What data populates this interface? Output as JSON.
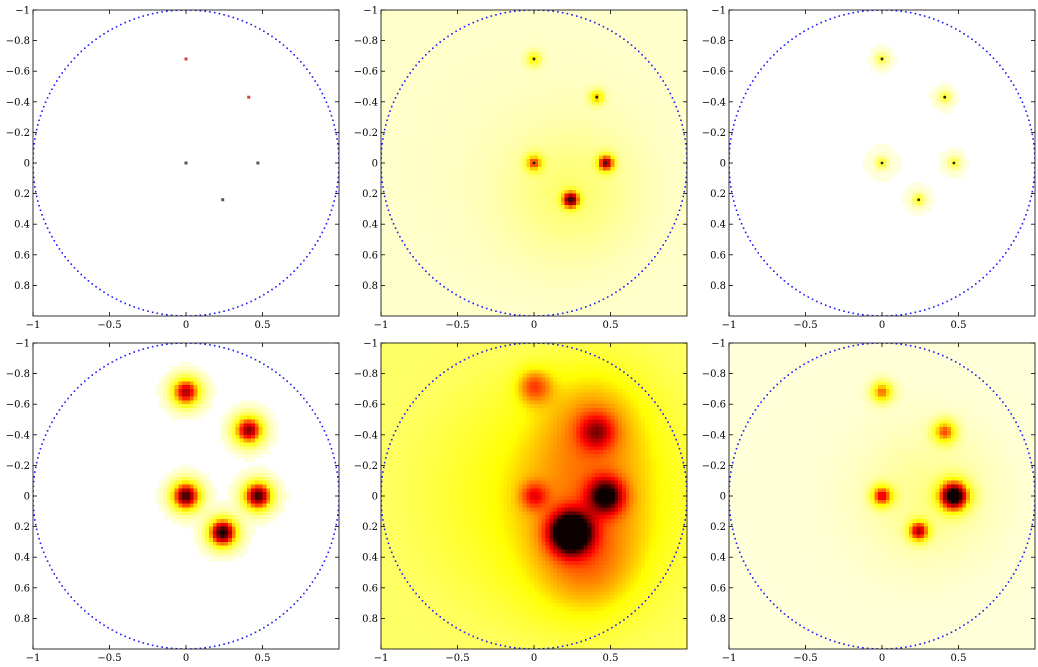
{
  "chart_data": [
    {
      "type": "scatter",
      "panel": "top-left",
      "render": "points",
      "xlim": [
        -1,
        1
      ],
      "ylim": [
        -1,
        1
      ],
      "y_reversed": true,
      "x_ticks": [
        -1,
        -0.5,
        0,
        0.5
      ],
      "x_tick_labels": [
        "−1",
        "−0.5",
        "0",
        "0.5"
      ],
      "y_ticks": [
        -1,
        -0.8,
        -0.6,
        -0.4,
        -0.2,
        0,
        0.2,
        0.4,
        0.6,
        0.8
      ],
      "y_tick_labels": [
        "−1",
        "−0.8",
        "−0.6",
        "−0.4",
        "−0.2",
        "0",
        "0.2",
        "0.4",
        "0.6",
        "0.8"
      ],
      "boundary": {
        "shape": "circle",
        "center": [
          0,
          0
        ],
        "radius": 1,
        "color": "#1a1aff",
        "dotted": true
      },
      "points": [
        {
          "x": 0,
          "y": -0.68,
          "intensity": 0.55,
          "color": "#d94040"
        },
        {
          "x": 0.41,
          "y": -0.43,
          "intensity": 0.6,
          "color": "#d94040"
        },
        {
          "x": 0,
          "y": 0,
          "intensity": 0.7,
          "color": "#555555"
        },
        {
          "x": 0.47,
          "y": 0,
          "intensity": 0.7,
          "color": "#555555"
        },
        {
          "x": 0.24,
          "y": 0.24,
          "intensity": 0.8,
          "color": "#555555"
        }
      ]
    },
    {
      "type": "heatmap",
      "panel": "top-middle",
      "xlim": [
        -1,
        1
      ],
      "ylim": [
        -1,
        1
      ],
      "y_reversed": true,
      "x_ticks": [
        -1,
        -0.5,
        0,
        0.5
      ],
      "x_tick_labels": [
        "−1",
        "−0.5",
        "0",
        "0.5"
      ],
      "y_ticks": [
        -1,
        -0.8,
        -0.6,
        -0.4,
        -0.2,
        0,
        0.2,
        0.4,
        0.6,
        0.8
      ],
      "y_tick_labels": [
        "−1",
        "−0.8",
        "−0.6",
        "−0.4",
        "−0.2",
        "0",
        "0.2",
        "0.4",
        "0.6",
        "0.8"
      ],
      "colormap": "hot",
      "background_level": 0.07,
      "boundary": {
        "shape": "circle",
        "center": [
          0,
          0
        ],
        "radius": 1,
        "color": "#1a1aff",
        "dotted": true
      },
      "blobs": [
        {
          "x": 0.24,
          "y": 0.2,
          "intensity": 0.14,
          "sigma": 0.3
        },
        {
          "x": 0,
          "y": -0.68,
          "intensity": 0.35,
          "sigma": 0.035
        },
        {
          "x": 0.41,
          "y": -0.43,
          "intensity": 0.42,
          "sigma": 0.035
        },
        {
          "x": 0,
          "y": 0,
          "intensity": 0.5,
          "sigma": 0.04
        },
        {
          "x": 0.47,
          "y": 0,
          "intensity": 0.72,
          "sigma": 0.04
        },
        {
          "x": 0.24,
          "y": 0.24,
          "intensity": 0.78,
          "sigma": 0.04
        }
      ]
    },
    {
      "type": "heatmap",
      "panel": "top-right",
      "xlim": [
        -1,
        1
      ],
      "ylim": [
        -1,
        1
      ],
      "y_reversed": true,
      "x_ticks": [
        -1,
        -0.5,
        0,
        0.5
      ],
      "x_tick_labels": [
        "−1",
        "−0.5",
        "0",
        "0.5"
      ],
      "y_ticks": [
        -1,
        -0.8,
        -0.6,
        -0.4,
        -0.2,
        0,
        0.2,
        0.4,
        0.6,
        0.8
      ],
      "y_tick_labels": [
        "−1",
        "−0.8",
        "−0.6",
        "−0.4",
        "−0.2",
        "0",
        "0.2",
        "0.4",
        "0.6",
        "0.8"
      ],
      "colormap": "hot",
      "background_level": 0.02,
      "boundary": {
        "shape": "circle",
        "center": [
          0,
          0
        ],
        "radius": 1,
        "color": "#1a1aff",
        "dotted": true
      },
      "blobs": [
        {
          "x": 0,
          "y": -0.68,
          "intensity": 0.28,
          "sigma": 0.03
        },
        {
          "x": 0.41,
          "y": -0.43,
          "intensity": 0.3,
          "sigma": 0.03
        },
        {
          "x": 0,
          "y": 0,
          "intensity": 0.3,
          "sigma": 0.03
        },
        {
          "x": 0.47,
          "y": 0,
          "intensity": 0.3,
          "sigma": 0.03
        },
        {
          "x": 0.24,
          "y": 0.24,
          "intensity": 0.35,
          "sigma": 0.03
        }
      ]
    },
    {
      "type": "heatmap",
      "panel": "bottom-left",
      "xlim": [
        -1,
        1
      ],
      "ylim": [
        -1,
        1
      ],
      "y_reversed": true,
      "x_ticks": [
        -1,
        -0.5,
        0,
        0.5
      ],
      "x_tick_labels": [
        "−1",
        "−0.5",
        "0",
        "0.5"
      ],
      "y_ticks": [
        -1,
        -0.8,
        -0.6,
        -0.4,
        -0.2,
        0,
        0.2,
        0.4,
        0.6,
        0.8
      ],
      "y_tick_labels": [
        "−1",
        "−0.8",
        "−0.6",
        "−0.4",
        "−0.2",
        "0",
        "0.2",
        "0.4",
        "0.6",
        "0.8"
      ],
      "colormap": "hot",
      "background_level": 0,
      "boundary": {
        "shape": "circle",
        "center": [
          0,
          0
        ],
        "radius": 1,
        "color": "#1a1aff",
        "dotted": true
      },
      "blobs": [
        {
          "x": 0,
          "y": -0.68,
          "intensity": 0.82,
          "sigma": 0.07
        },
        {
          "x": 0.41,
          "y": -0.43,
          "intensity": 0.86,
          "sigma": 0.07
        },
        {
          "x": 0,
          "y": 0,
          "intensity": 0.95,
          "sigma": 0.07
        },
        {
          "x": 0.47,
          "y": 0,
          "intensity": 0.95,
          "sigma": 0.07
        },
        {
          "x": 0.24,
          "y": 0.24,
          "intensity": 1.0,
          "sigma": 0.07
        }
      ]
    },
    {
      "type": "heatmap",
      "panel": "bottom-middle",
      "xlim": [
        -1,
        1
      ],
      "ylim": [
        -1,
        1
      ],
      "y_reversed": true,
      "x_ticks": [
        -1,
        -0.5,
        0,
        0.5
      ],
      "x_tick_labels": [
        "−1",
        "−0.5",
        "0",
        "0.5"
      ],
      "y_ticks": [
        -1,
        -0.8,
        -0.6,
        -0.4,
        -0.2,
        0,
        0.2,
        0.4,
        0.6,
        0.8
      ],
      "y_tick_labels": [
        "−1",
        "−0.8",
        "−0.6",
        "−0.4",
        "−0.2",
        "0",
        "0.2",
        "0.4",
        "0.6",
        "0.8"
      ],
      "colormap": "hot",
      "background_level": 0.3,
      "boundary": {
        "shape": "circle",
        "center": [
          0,
          0
        ],
        "radius": 1,
        "color": "#1a1aff",
        "dotted": true
      },
      "blobs": [
        {
          "x": 0.35,
          "y": 0,
          "intensity": 0.25,
          "sigma": 0.45
        },
        {
          "x": 0.35,
          "y": 0.5,
          "intensity": 0.18,
          "sigma": 0.25
        },
        {
          "x": 0.4,
          "y": -0.55,
          "intensity": 0.16,
          "sigma": 0.25
        },
        {
          "x": 0,
          "y": -0.72,
          "intensity": 0.3,
          "sigma": 0.08
        },
        {
          "x": 0.41,
          "y": -0.42,
          "intensity": 0.3,
          "sigma": 0.08
        },
        {
          "x": 0,
          "y": 0,
          "intensity": 0.25,
          "sigma": 0.06
        },
        {
          "x": 0.47,
          "y": 0,
          "intensity": 0.55,
          "sigma": 0.08
        },
        {
          "x": 0.24,
          "y": 0.24,
          "intensity": 0.9,
          "sigma": 0.09
        }
      ]
    },
    {
      "type": "heatmap",
      "panel": "bottom-right",
      "xlim": [
        -1,
        1
      ],
      "ylim": [
        -1,
        1
      ],
      "y_reversed": true,
      "x_ticks": [
        -1,
        -0.5,
        0,
        0.5
      ],
      "x_tick_labels": [
        "−1",
        "−0.5",
        "0",
        "0.5"
      ],
      "y_ticks": [
        -1,
        -0.8,
        -0.6,
        -0.4,
        -0.2,
        0,
        0.2,
        0.4,
        0.6,
        0.8
      ],
      "y_tick_labels": [
        "−1",
        "−0.8",
        "−0.6",
        "−0.4",
        "−0.2",
        "0",
        "0.2",
        "0.4",
        "0.6",
        "0.8"
      ],
      "colormap": "hot",
      "background_level": 0.04,
      "boundary": {
        "shape": "circle",
        "center": [
          0,
          0
        ],
        "radius": 1,
        "color": "#1a1aff",
        "dotted": true
      },
      "blobs": [
        {
          "x": 0.3,
          "y": 0,
          "intensity": 0.12,
          "sigma": 0.3
        },
        {
          "x": 0,
          "y": -0.68,
          "intensity": 0.55,
          "sigma": 0.05
        },
        {
          "x": 0.41,
          "y": -0.42,
          "intensity": 0.55,
          "sigma": 0.055
        },
        {
          "x": 0,
          "y": 0,
          "intensity": 0.65,
          "sigma": 0.05
        },
        {
          "x": 0.47,
          "y": 0,
          "intensity": 1.0,
          "sigma": 0.07
        },
        {
          "x": 0.24,
          "y": 0.23,
          "intensity": 0.7,
          "sigma": 0.05
        }
      ]
    }
  ]
}
